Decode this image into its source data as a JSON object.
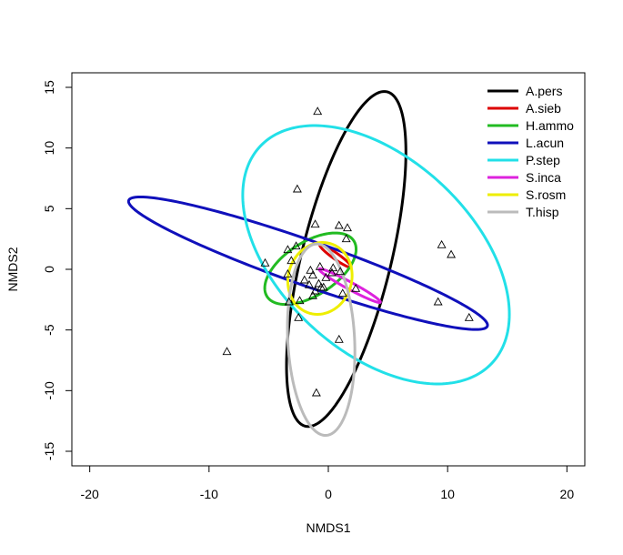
{
  "chart_data": {
    "type": "scatter",
    "title": "",
    "xlabel": "NMDS1",
    "ylabel": "NMDS2",
    "xlim": [
      -21.5,
      21.5
    ],
    "ylim": [
      -16.2,
      16.2
    ],
    "xticks": [
      -20,
      -10,
      0,
      10,
      20
    ],
    "yticks": [
      -15,
      -10,
      -5,
      0,
      5,
      10,
      15
    ],
    "xtick_labels": [
      "-20",
      "-10",
      "0",
      "10",
      "20"
    ],
    "ytick_labels": [
      "-15",
      "-10",
      "-5",
      "0",
      "5",
      "10",
      "15"
    ],
    "legend_position": "top-right",
    "grid": false,
    "points": [
      [
        -0.9,
        13.0
      ],
      [
        -2.6,
        6.6
      ],
      [
        -1.1,
        3.7
      ],
      [
        0.9,
        3.6
      ],
      [
        1.6,
        3.4
      ],
      [
        -2.7,
        1.9
      ],
      [
        -3.4,
        1.6
      ],
      [
        1.5,
        2.5
      ],
      [
        -5.3,
        0.5
      ],
      [
        -3.1,
        0.7
      ],
      [
        -0.7,
        0.2
      ],
      [
        -1.5,
        -0.1
      ],
      [
        -1.3,
        -0.5
      ],
      [
        -3.4,
        -0.4
      ],
      [
        -0.2,
        -0.7
      ],
      [
        -0.8,
        -1.2
      ],
      [
        -1.6,
        -1.3
      ],
      [
        -0.4,
        -1.5
      ],
      [
        -1.1,
        -1.8
      ],
      [
        -0.6,
        -1.5
      ],
      [
        0.3,
        -0.3
      ],
      [
        1.0,
        -0.2
      ],
      [
        2.3,
        -1.6
      ],
      [
        -2.4,
        -2.6
      ],
      [
        -1.3,
        -2.2
      ],
      [
        -3.3,
        -2.7
      ],
      [
        -2.5,
        -4.0
      ],
      [
        0.9,
        -5.8
      ],
      [
        -8.5,
        -6.8
      ],
      [
        -1.0,
        -10.2
      ],
      [
        9.5,
        2.0
      ],
      [
        10.3,
        1.2
      ],
      [
        9.2,
        -2.7
      ],
      [
        11.8,
        -4.0
      ],
      [
        0.4,
        0.1
      ],
      [
        -2.0,
        -0.9
      ],
      [
        1.2,
        -2.0
      ]
    ],
    "series": [
      {
        "name": "A.pers",
        "color": "#000000",
        "cx": 1.5,
        "cy": 0.85,
        "rx": 14.2,
        "ry": 3.75,
        "angle_deg": 76
      },
      {
        "name": "A.sieb",
        "color": "#dd0000",
        "cx": 0.6,
        "cy": 1.1,
        "rx": 1.6,
        "ry": 0.25,
        "angle_deg": -35
      },
      {
        "name": "H.ammo",
        "color": "#22bb22",
        "cx": -1.5,
        "cy": 0.05,
        "rx": 4.3,
        "ry": 2.2,
        "angle_deg": 32
      },
      {
        "name": "L.acun",
        "color": "#1010bb",
        "cx": -1.7,
        "cy": 0.5,
        "rx": 15.9,
        "ry": 1.85,
        "angle_deg": -19
      },
      {
        "name": "P.step",
        "color": "#22e0e8",
        "cx": 4.0,
        "cy": 1.2,
        "rx": 13.2,
        "ry": 8.0,
        "angle_deg": -42
      },
      {
        "name": "S.inca",
        "color": "#dd22dd",
        "cx": 1.8,
        "cy": -1.35,
        "rx": 2.9,
        "ry": 0.3,
        "angle_deg": -28
      },
      {
        "name": "S.rosm",
        "color": "#eeee00",
        "cx": -0.7,
        "cy": -0.75,
        "rx": 3.0,
        "ry": 2.65,
        "angle_deg": 70
      },
      {
        "name": "T.hisp",
        "color": "#bbbbbb",
        "cx": -0.6,
        "cy": -5.8,
        "rx": 7.9,
        "ry": 2.8,
        "angle_deg": 93
      }
    ]
  }
}
